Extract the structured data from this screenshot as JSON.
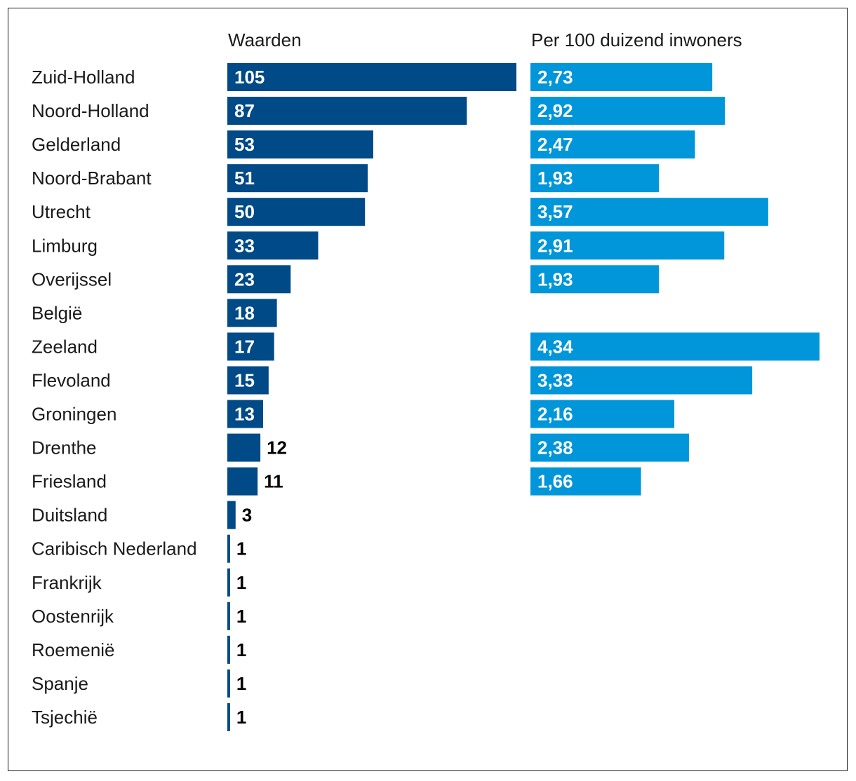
{
  "chart_data": {
    "type": "bar",
    "orientation": "horizontal",
    "categories": [
      "Zuid-Holland",
      "Noord-Holland",
      "Gelderland",
      "Noord-Brabant",
      "Utrecht",
      "Limburg",
      "Overijssel",
      "België",
      "Zeeland",
      "Flevoland",
      "Groningen",
      "Drenthe",
      "Friesland",
      "Duitsland",
      "Caribisch Nederland",
      "Frankrijk",
      "Oostenrijk",
      "Roemenië",
      "Spanje",
      "Tsjechië"
    ],
    "series": [
      {
        "name": "Waarden",
        "color": "#004a87",
        "values": [
          105,
          87,
          53,
          51,
          50,
          33,
          23,
          18,
          17,
          15,
          13,
          12,
          11,
          3,
          1,
          1,
          1,
          1,
          1,
          1
        ],
        "labels": [
          "105",
          "87",
          "53",
          "51",
          "50",
          "33",
          "23",
          "18",
          "17",
          "15",
          "13",
          "12",
          "11",
          "3",
          "1",
          "1",
          "1",
          "1",
          "1",
          "1"
        ]
      },
      {
        "name": "Per 100 duizend inwoners",
        "color": "#0096d9",
        "values": [
          2.73,
          2.92,
          2.47,
          1.93,
          3.57,
          2.91,
          1.93,
          null,
          4.34,
          3.33,
          2.16,
          2.38,
          1.66,
          null,
          null,
          null,
          null,
          null,
          null,
          null
        ],
        "labels": [
          "2,73",
          "2,92",
          "2,47",
          "1,93",
          "3,57",
          "2,91",
          "1,93",
          null,
          "4,34",
          "3,33",
          "2,16",
          "2,38",
          "1,66",
          null,
          null,
          null,
          null,
          null,
          null,
          null
        ]
      }
    ],
    "grid": false,
    "legend": "none"
  }
}
